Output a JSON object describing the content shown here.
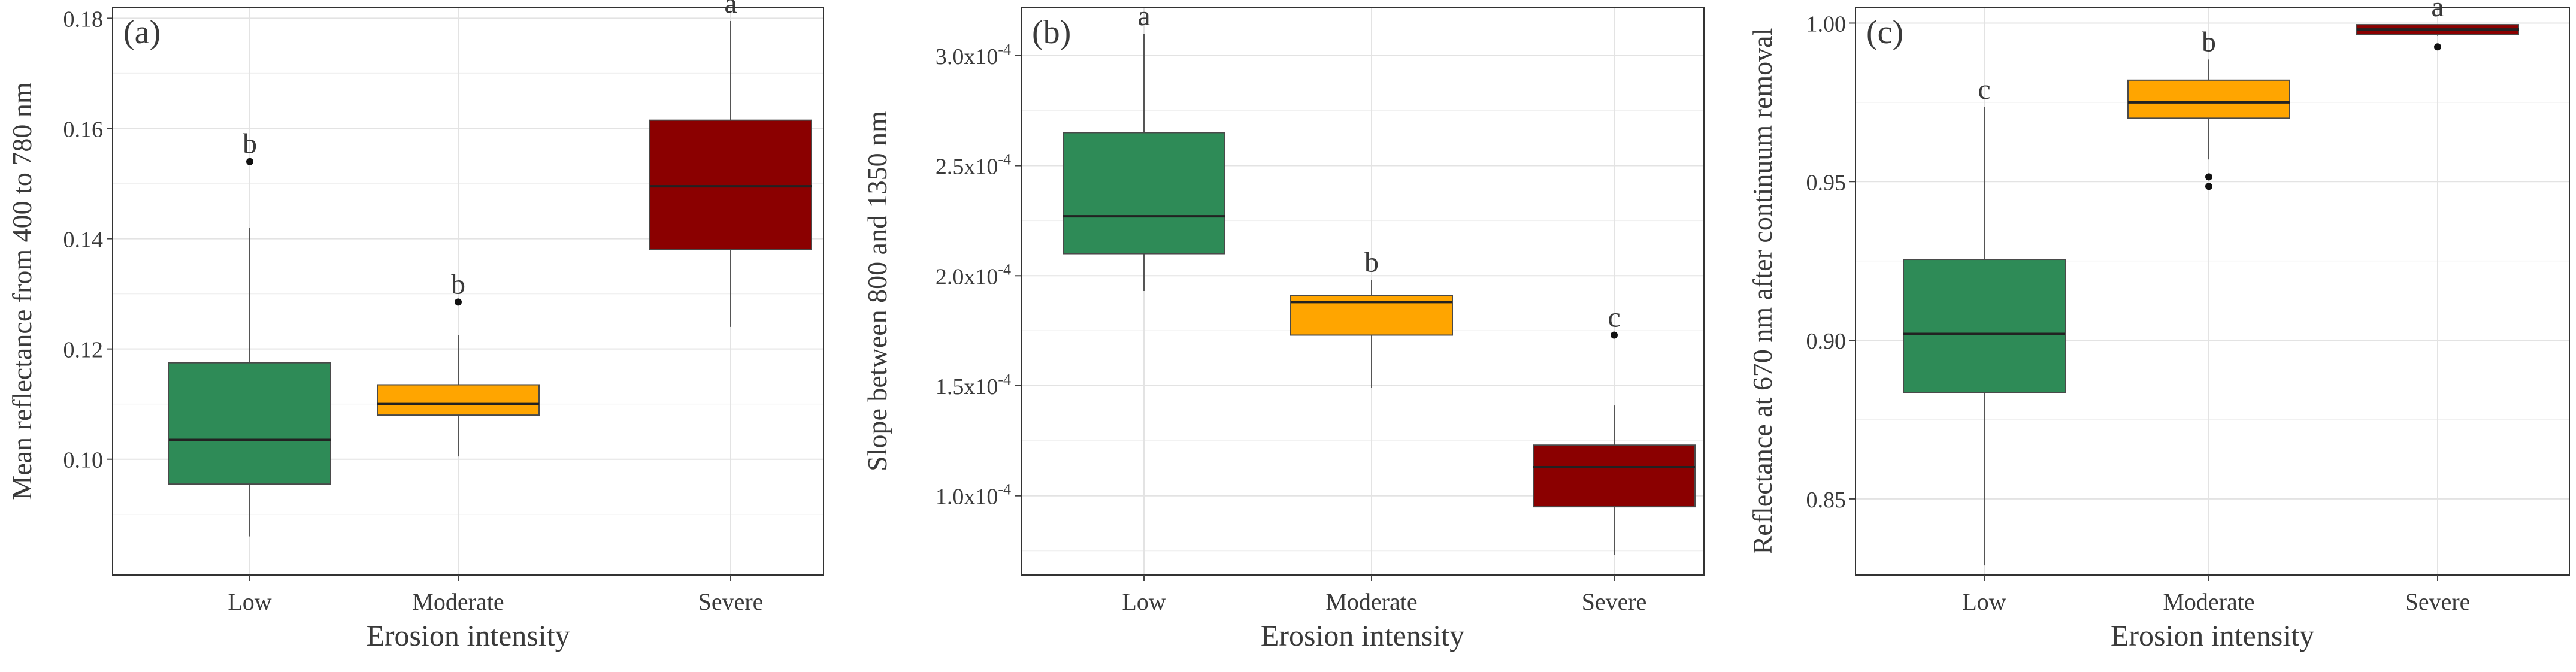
{
  "chart_data": [
    {
      "type": "boxplot",
      "panel_label": "(a)",
      "xlabel": "Erosion intensity",
      "ylabel": "Mean reflectance from 400 to 780 nm",
      "categories": [
        "Low",
        "Moderate",
        "Severe"
      ],
      "ylim": [
        0.079,
        0.182
      ],
      "yticks": [
        {
          "value": 0.1,
          "label": "0.10"
        },
        {
          "value": 0.12,
          "label": "0.12"
        },
        {
          "value": 0.14,
          "label": "0.14"
        },
        {
          "value": 0.16,
          "label": "0.16"
        },
        {
          "value": 0.18,
          "label": "0.18"
        }
      ],
      "boxes": [
        {
          "category": "Low",
          "whisker_low": 0.086,
          "q1": 0.0955,
          "median": 0.1035,
          "q3": 0.1175,
          "whisker_high": 0.142,
          "outliers": [
            0.154
          ],
          "letter": "b",
          "color": "#2e8b57"
        },
        {
          "category": "Moderate",
          "whisker_low": 0.1005,
          "q1": 0.108,
          "median": 0.11,
          "q3": 0.1135,
          "whisker_high": 0.1225,
          "outliers": [
            0.1285
          ],
          "letter": "b",
          "color": "#ffa500"
        },
        {
          "category": "Severe",
          "whisker_low": 0.124,
          "q1": 0.138,
          "median": 0.1495,
          "q3": 0.1615,
          "whisker_high": 0.1795,
          "outliers": [],
          "letter": "a",
          "color": "#8b0000"
        }
      ]
    },
    {
      "type": "boxplot",
      "panel_label": "(b)",
      "xlabel": "Erosion intensity",
      "ylabel": "Slope between 800 and 1350 nm",
      "categories": [
        "Low",
        "Moderate",
        "Severe"
      ],
      "ylim": [
        6.4e-05,
        0.000322
      ],
      "yticks": [
        {
          "value": 0.0001,
          "label": "1.0x10",
          "exp": "-4"
        },
        {
          "value": 0.00015,
          "label": "1.5x10",
          "exp": "-4"
        },
        {
          "value": 0.0002,
          "label": "2.0x10",
          "exp": "-4"
        },
        {
          "value": 0.00025,
          "label": "2.5x10",
          "exp": "-4"
        },
        {
          "value": 0.0003,
          "label": "3.0x10",
          "exp": "-4"
        }
      ],
      "boxes": [
        {
          "category": "Low",
          "whisker_low": 0.000193,
          "q1": 0.00021,
          "median": 0.000227,
          "q3": 0.000265,
          "whisker_high": 0.00031,
          "outliers": [],
          "letter": "a",
          "color": "#2e8b57"
        },
        {
          "category": "Moderate",
          "whisker_low": 0.000149,
          "q1": 0.000173,
          "median": 0.000188,
          "q3": 0.000191,
          "whisker_high": 0.000198,
          "outliers": [],
          "letter": "b",
          "color": "#ffa500"
        },
        {
          "category": "Severe",
          "whisker_low": 7.3e-05,
          "q1": 9.5e-05,
          "median": 0.000113,
          "q3": 0.000123,
          "whisker_high": 0.000141,
          "outliers": [
            0.000173
          ],
          "letter": "c",
          "color": "#8b0000"
        }
      ]
    },
    {
      "type": "boxplot",
      "panel_label": "(c)",
      "xlabel": "Erosion intensity",
      "ylabel": "Reflectance at 670 nm after continuum removal",
      "categories": [
        "Low",
        "Moderate",
        "Severe"
      ],
      "ylim": [
        0.826,
        1.005
      ],
      "yticks": [
        {
          "value": 0.85,
          "label": "0.85"
        },
        {
          "value": 0.9,
          "label": "0.90"
        },
        {
          "value": 0.95,
          "label": "0.95"
        },
        {
          "value": 1.0,
          "label": "1.00"
        }
      ],
      "boxes": [
        {
          "category": "Low",
          "whisker_low": 0.829,
          "q1": 0.8835,
          "median": 0.902,
          "q3": 0.9255,
          "whisker_high": 0.9735,
          "outliers": [],
          "letter": "c",
          "color": "#2e8b57"
        },
        {
          "category": "Moderate",
          "whisker_low": 0.957,
          "q1": 0.97,
          "median": 0.975,
          "q3": 0.982,
          "whisker_high": 0.9885,
          "outliers": [
            0.9485,
            0.9515
          ],
          "letter": "b",
          "color": "#ffa500"
        },
        {
          "category": "Severe",
          "whisker_low": 0.996,
          "q1": 0.9965,
          "median": 0.998,
          "q3": 0.9995,
          "whisker_high": 0.9995,
          "outliers": [
            0.9925
          ],
          "letter": "a",
          "color": "#8b0000"
        }
      ]
    }
  ]
}
